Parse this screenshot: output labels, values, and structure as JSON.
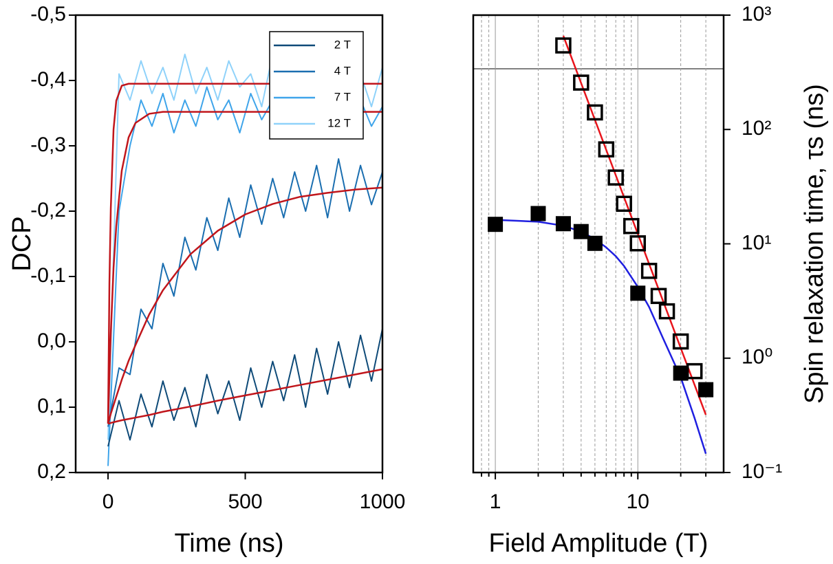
{
  "chart_data": [
    {
      "type": "line",
      "xlabel": "Time (ns)",
      "ylabel": "DCP",
      "xlim": [
        -118,
        1000
      ],
      "xticks": [
        0,
        500,
        1000
      ],
      "ylim": [
        0.2,
        -0.5
      ],
      "yticks": [
        {
          "value": -0.5,
          "label": "-0,5"
        },
        {
          "value": -0.4,
          "label": "-0,4"
        },
        {
          "value": -0.3,
          "label": "-0,3"
        },
        {
          "value": -0.2,
          "label": "-0,2"
        },
        {
          "value": -0.1,
          "label": "-0,1"
        },
        {
          "value": 0,
          "label": "0,0"
        },
        {
          "value": 0.1,
          "label": "0,1"
        },
        {
          "value": 0.2,
          "label": "0,2"
        }
      ],
      "legend": "upper right",
      "series": [
        {
          "name": "2 T",
          "color": "#0e4a78",
          "x": [
            0,
            40,
            80,
            120,
            160,
            200,
            240,
            280,
            320,
            360,
            400,
            440,
            480,
            520,
            560,
            600,
            640,
            680,
            720,
            760,
            800,
            840,
            880,
            920,
            960,
            1000
          ],
          "values": [
            0.16,
            0.09,
            0.15,
            0.08,
            0.13,
            0.06,
            0.12,
            0.07,
            0.13,
            0.05,
            0.11,
            0.06,
            0.12,
            0.04,
            0.1,
            0.03,
            0.09,
            0.02,
            0.1,
            0.01,
            0.08,
            0.0,
            0.07,
            -0.01,
            0.06,
            -0.02
          ]
        },
        {
          "name": "4 T",
          "color": "#1a6eb0",
          "x": [
            0,
            40,
            80,
            120,
            160,
            200,
            240,
            280,
            320,
            360,
            400,
            440,
            480,
            520,
            560,
            600,
            640,
            680,
            720,
            760,
            800,
            840,
            880,
            920,
            960,
            1000
          ],
          "values": [
            0.13,
            0.04,
            0.05,
            -0.05,
            -0.02,
            -0.12,
            -0.07,
            -0.16,
            -0.11,
            -0.19,
            -0.14,
            -0.22,
            -0.16,
            -0.24,
            -0.18,
            -0.25,
            -0.19,
            -0.26,
            -0.2,
            -0.27,
            -0.19,
            -0.28,
            -0.2,
            -0.27,
            -0.21,
            -0.26
          ]
        },
        {
          "name": "7 T",
          "color": "#3ea4ea",
          "x": [
            0,
            40,
            80,
            120,
            160,
            200,
            240,
            280,
            320,
            360,
            400,
            440,
            480,
            520,
            560,
            600,
            640,
            680,
            720,
            760,
            800,
            840,
            880,
            920,
            960,
            1000
          ],
          "values": [
            0.19,
            -0.2,
            -0.3,
            -0.37,
            -0.33,
            -0.38,
            -0.32,
            -0.37,
            -0.33,
            -0.39,
            -0.34,
            -0.37,
            -0.32,
            -0.38,
            -0.34,
            -0.37,
            -0.33,
            -0.38,
            -0.34,
            -0.36,
            -0.32,
            -0.38,
            -0.35,
            -0.37,
            -0.33,
            -0.36
          ]
        },
        {
          "name": "12 T",
          "color": "#8fd2fa",
          "x": [
            0,
            40,
            80,
            120,
            160,
            200,
            240,
            280,
            320,
            360,
            400,
            440,
            480,
            520,
            560,
            600,
            640,
            680,
            720,
            760,
            800,
            840,
            880,
            920,
            960,
            1000
          ],
          "values": [
            0.15,
            -0.41,
            -0.37,
            -0.43,
            -0.38,
            -0.42,
            -0.37,
            -0.44,
            -0.38,
            -0.42,
            -0.37,
            -0.43,
            -0.39,
            -0.41,
            -0.36,
            -0.44,
            -0.38,
            -0.42,
            -0.4,
            -0.45,
            -0.37,
            -0.43,
            -0.39,
            -0.41,
            -0.36,
            -0.42
          ]
        },
        {
          "color": "#c0151b",
          "x": [
            0,
            5,
            10,
            20,
            30,
            50,
            75,
            100,
            150,
            200,
            300,
            400,
            500,
            600,
            700,
            800,
            900,
            1000
          ],
          "values": [
            0.125,
            0.125,
            0.124,
            0.123,
            0.122,
            0.12,
            0.118,
            0.116,
            0.112,
            0.107,
            0.099,
            0.09,
            0.082,
            0.074,
            0.066,
            0.058,
            0.05,
            0.042
          ]
        },
        {
          "color": "#c0151b",
          "x": [
            0,
            5,
            10,
            20,
            30,
            50,
            75,
            100,
            150,
            200,
            300,
            400,
            500,
            600,
            700,
            800,
            900,
            1000
          ],
          "values": [
            0.125,
            0.118,
            0.11,
            0.097,
            0.084,
            0.058,
            0.029,
            0.005,
            -0.042,
            -0.079,
            -0.134,
            -0.17,
            -0.195,
            -0.211,
            -0.222,
            -0.228,
            -0.233,
            -0.236
          ]
        },
        {
          "color": "#c0151b",
          "x": [
            0,
            5,
            10,
            20,
            30,
            50,
            75,
            100,
            150,
            200,
            300,
            400,
            500,
            600,
            700,
            800,
            900,
            1000
          ],
          "values": [
            0.125,
            0.051,
            -0.013,
            -0.113,
            -0.177,
            -0.262,
            -0.313,
            -0.335,
            -0.349,
            -0.352,
            -0.352,
            -0.352,
            -0.352,
            -0.352,
            -0.352,
            -0.352,
            -0.352,
            -0.352
          ]
        },
        {
          "color": "#c0151b",
          "x": [
            0,
            5,
            10,
            20,
            30,
            50,
            75,
            100,
            150,
            200,
            300,
            400,
            500,
            600,
            700,
            800,
            900,
            1000
          ],
          "values": [
            0.125,
            -0.09,
            -0.204,
            -0.325,
            -0.369,
            -0.392,
            -0.395,
            -0.395,
            -0.395,
            -0.395,
            -0.395,
            -0.395,
            -0.395,
            -0.395,
            -0.395,
            -0.395,
            -0.395,
            -0.395
          ]
        }
      ]
    },
    {
      "type": "scatter",
      "xlabel": "Field Amplitude (T)",
      "ylabel": "Spin relaxation time, τs (ns)",
      "xscale": "log",
      "yscale": "log",
      "y_axis_side": "right",
      "xlim": [
        0.7,
        40
      ],
      "xticks": [
        1,
        10
      ],
      "x_minor_ticks": [
        0.8,
        0.9,
        2,
        3,
        4,
        5,
        6,
        7,
        8,
        9,
        20,
        30
      ],
      "ylim": [
        0.1,
        1000
      ],
      "yticks": [
        {
          "value": 0.1,
          "label": "10⁻¹"
        },
        {
          "value": 1,
          "label": "10⁰"
        },
        {
          "value": 10,
          "label": "10¹"
        },
        {
          "value": 100,
          "label": "10²"
        },
        {
          "value": 1000,
          "label": "10³"
        }
      ],
      "grid": true,
      "series": [
        {
          "mode": "line",
          "color": "#1f1fe0",
          "x": [
            1,
            2,
            3,
            4,
            5,
            6,
            7,
            8,
            10,
            12,
            15,
            20,
            25,
            30
          ],
          "values": [
            16.2,
            15.6,
            14.4,
            12.8,
            11,
            9.3,
            7.8,
            6.4,
            4.2,
            2.8,
            1.5,
            0.68,
            0.3,
            0.146
          ]
        },
        {
          "mode": "line",
          "color": "#e8141b",
          "x": [
            3,
            30
          ],
          "values": [
            660,
            0.32
          ]
        },
        {
          "mode": "open-square",
          "color": "#000000",
          "x": [
            3,
            4,
            5,
            6,
            7,
            8,
            9,
            10,
            12,
            14,
            16,
            20,
            25
          ],
          "values": [
            543,
            257,
            141,
            67,
            38,
            22.4,
            14.3,
            10.1,
            5.8,
            3.5,
            2.57,
            1.4,
            0.77
          ]
        },
        {
          "mode": "filled-square",
          "color": "#000000",
          "x": [
            1,
            2,
            3,
            4,
            5,
            10,
            20,
            30
          ],
          "values": [
            14.8,
            18.4,
            15,
            12.8,
            10.1,
            3.7,
            0.74,
            0.53
          ]
        }
      ]
    }
  ]
}
